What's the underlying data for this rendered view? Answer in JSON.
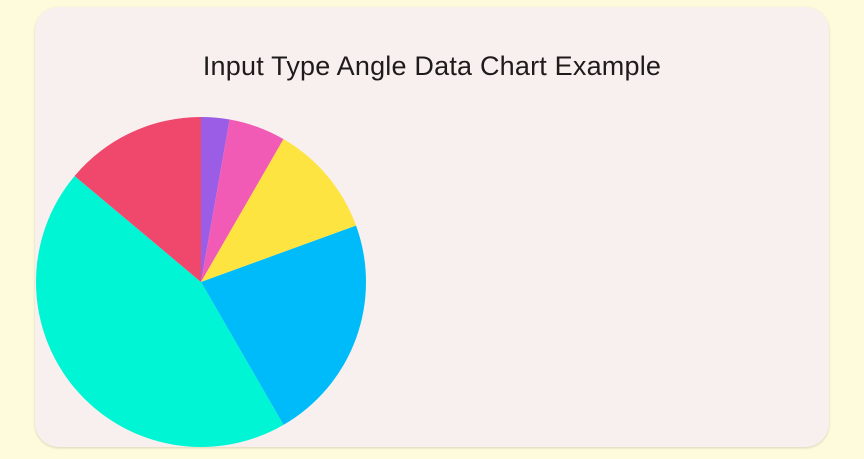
{
  "chart_data": {
    "type": "pie",
    "title": "Input Type Angle Data Chart Example",
    "start_angle_deg": 0,
    "direction": "clockwise",
    "slices": [
      {
        "value": 10,
        "color": "#9b5de5"
      },
      {
        "value": 20,
        "color": "#f15bb5"
      },
      {
        "value": 40,
        "color": "#fee440"
      },
      {
        "value": 80,
        "color": "#00bbf9"
      },
      {
        "value": 160,
        "color": "#00f5d4"
      },
      {
        "value": 50,
        "color": "#f0476c"
      }
    ]
  },
  "colors": {
    "page_background": "#fefbdc",
    "card_background": "#f8f0ee"
  }
}
